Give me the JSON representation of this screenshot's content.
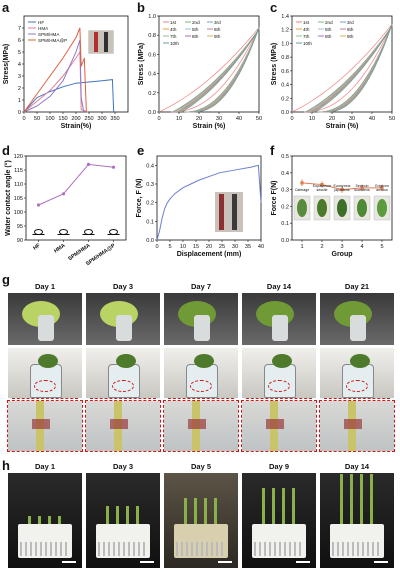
{
  "panels": {
    "a": "a",
    "b": "b",
    "c": "c",
    "d": "d",
    "e": "e",
    "f": "f",
    "g": "g",
    "h": "h"
  },
  "chart_data": [
    {
      "id": "a",
      "type": "line",
      "xlabel": "Strain(%)",
      "ylabel": "Stress(MPa)",
      "xlim": [
        0,
        400
      ],
      "ylim": [
        0,
        8
      ],
      "xticks": [
        0,
        50,
        100,
        150,
        200,
        250,
        300,
        350
      ],
      "yticks": [
        0,
        1,
        2,
        3,
        4,
        5,
        6,
        7
      ],
      "legend_position": "top-left",
      "series": [
        {
          "name": "HF",
          "color": "#4472c4",
          "points": [
            [
              0,
              0
            ],
            [
              50,
              1.2
            ],
            [
              100,
              1.7
            ],
            [
              150,
              2.1
            ],
            [
              200,
              2.4
            ],
            [
              250,
              2.5
            ],
            [
              300,
              2.6
            ],
            [
              340,
              2.7
            ],
            [
              345,
              0
            ]
          ]
        },
        {
          "name": "HMA",
          "color": "#e67e96",
          "points": [
            [
              0,
              0
            ],
            [
              50,
              0.9
            ],
            [
              100,
              1.8
            ],
            [
              150,
              3.0
            ],
            [
              200,
              4.5
            ],
            [
              215,
              5.0
            ],
            [
              220,
              0.2
            ],
            [
              245,
              0
            ]
          ]
        },
        {
          "name": "SPM/HMA",
          "color": "#8b7bc4",
          "points": [
            [
              0,
              0
            ],
            [
              50,
              0.5
            ],
            [
              100,
              1.3
            ],
            [
              150,
              2.6
            ],
            [
              200,
              5.0
            ],
            [
              215,
              6.0
            ],
            [
              220,
              1.2
            ],
            [
              230,
              0
            ]
          ]
        },
        {
          "name": "SPM/HMA@P",
          "color": "#e06040",
          "points": [
            [
              0,
              0
            ],
            [
              50,
              1.5
            ],
            [
              100,
              3.0
            ],
            [
              150,
              4.5
            ],
            [
              200,
              6.2
            ],
            [
              215,
              7.0
            ],
            [
              220,
              3.8
            ],
            [
              232,
              4.5
            ],
            [
              240,
              0
            ]
          ]
        }
      ]
    },
    {
      "id": "b",
      "type": "line",
      "xlabel": "Strain (%)",
      "ylabel": "Stress (MPa)",
      "xlim": [
        0,
        50
      ],
      "ylim": [
        0,
        1.0
      ],
      "xticks": [
        0,
        10,
        20,
        30,
        40,
        50
      ],
      "yticks": [
        0.0,
        0.2,
        0.4,
        0.6,
        0.8,
        1.0
      ],
      "legend": [
        "1st",
        "2nd",
        "3rd",
        "4th",
        "5th",
        "6th",
        "7th",
        "8th",
        "9th",
        "10th"
      ],
      "legend_colors": [
        "#f08080",
        "#7ab87a",
        "#7b9bd9",
        "#e8a040",
        "#9bc0d8",
        "#c08080",
        "#90c090",
        "#a070c0",
        "#d4b060",
        "#5ea0a0"
      ],
      "peak": {
        "x": 50,
        "y": 0.88
      }
    },
    {
      "id": "c",
      "type": "line",
      "xlabel": "Strain (%)",
      "ylabel": "Stress (MPa)",
      "xlim": [
        0,
        50
      ],
      "ylim": [
        0,
        1.4
      ],
      "xticks": [
        0,
        10,
        20,
        30,
        40,
        50
      ],
      "yticks": [
        0.0,
        0.2,
        0.4,
        0.6,
        0.8,
        1.0,
        1.2,
        1.4
      ],
      "legend": [
        "1st",
        "2nd",
        "3rd",
        "4th",
        "5th",
        "6th",
        "7th",
        "8th",
        "9th",
        "10th"
      ],
      "legend_colors": [
        "#f08080",
        "#7ab87a",
        "#7b9bd9",
        "#e8a040",
        "#9bc0d8",
        "#c08080",
        "#90c090",
        "#a070c0",
        "#d4b060",
        "#5ea0a0"
      ],
      "peak": {
        "x": 50,
        "y": 1.28
      }
    },
    {
      "id": "d",
      "type": "line",
      "xlabel": "",
      "ylabel": "Water contact angle (°)",
      "ylim": [
        90,
        120
      ],
      "yticks": [
        90,
        95,
        100,
        105,
        110,
        115,
        120
      ],
      "categories": [
        "HF",
        "HMA",
        "SPM/HMA",
        "SPM/HMA@P"
      ],
      "values": [
        102.5,
        106.5,
        117.0,
        116.0
      ],
      "color": "#b070c0"
    },
    {
      "id": "e",
      "type": "line",
      "xlabel": "Displacement (mm)",
      "ylabel": "Force, F (N)",
      "xlim": [
        0,
        40
      ],
      "ylim": [
        0,
        0.45
      ],
      "xticks": [
        0,
        5,
        10,
        15,
        20,
        25,
        30,
        35,
        40
      ],
      "yticks": [
        0.0,
        0.1,
        0.2,
        0.3,
        0.4
      ],
      "color": "#6a7fd0",
      "points": [
        [
          0,
          0
        ],
        [
          1,
          0.05
        ],
        [
          2,
          0.12
        ],
        [
          3,
          0.17
        ],
        [
          4,
          0.2
        ],
        [
          5,
          0.22
        ],
        [
          7,
          0.25
        ],
        [
          10,
          0.28
        ],
        [
          13,
          0.3
        ],
        [
          16,
          0.32
        ],
        [
          20,
          0.34
        ],
        [
          24,
          0.36
        ],
        [
          28,
          0.37
        ],
        [
          32,
          0.38
        ],
        [
          36,
          0.39
        ],
        [
          39,
          0.4
        ],
        [
          40,
          0.2
        ]
      ]
    },
    {
      "id": "f",
      "type": "line",
      "xlabel": "Group",
      "ylabel": "Force F(N)",
      "xlim": [
        0.5,
        5.5
      ],
      "ylim": [
        0,
        0.5
      ],
      "xticks": [
        1,
        2,
        3,
        4,
        5
      ],
      "yticks": [
        0.0,
        0.1,
        0.2,
        0.3,
        0.4,
        0.5
      ],
      "color": "#e07a50",
      "x": [
        1,
        2,
        3,
        4,
        5
      ],
      "values": [
        0.34,
        0.33,
        0.3,
        0.31,
        0.31
      ],
      "errors": [
        0.02,
        0.02,
        0.02,
        0.02,
        0.02
      ],
      "leaf_labels": [
        "Cabbage",
        "Eupatorium\nsessile",
        "Euonymus\njaponicus",
        "Senecio\nscandens",
        "Erigeron\nannuus"
      ]
    }
  ],
  "g": {
    "days": [
      "Day 1",
      "Day 3",
      "Day 7",
      "Day 14",
      "Day 21"
    ]
  },
  "h": {
    "days": [
      "Day 1",
      "Day 3",
      "Day 5",
      "Day 9",
      "Day 14"
    ]
  }
}
